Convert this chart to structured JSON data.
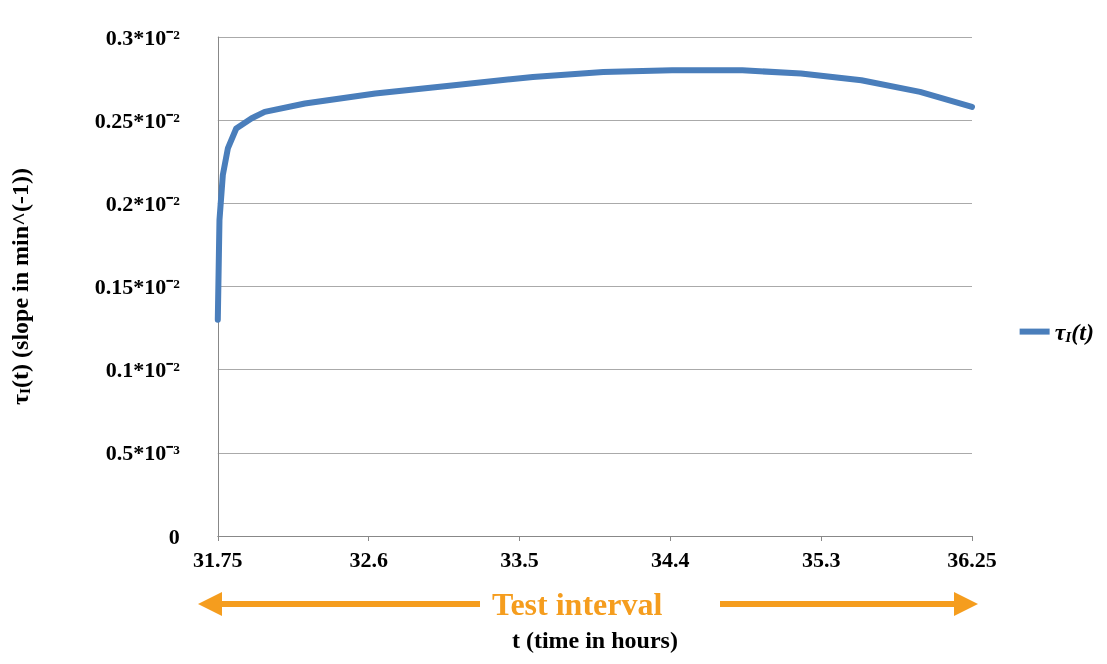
{
  "chart_data": {
    "type": "line",
    "ylabel": "τ$_{I}$(t) (slope in min^(-1))",
    "xlabel": "t (time in hours)",
    "annotations": [
      "Test interval"
    ],
    "series": [
      {
        "name": "τ$_{I}$(t)",
        "color": "#4a7ebb",
        "x": [
          31.75,
          31.76,
          31.78,
          31.81,
          31.86,
          31.95,
          32.03,
          32.27,
          32.69,
          33.16,
          33.63,
          34.05,
          34.46,
          34.88,
          35.23,
          35.59,
          35.94,
          36.25
        ],
        "values": [
          0.0013,
          0.0019,
          0.00217,
          0.00233,
          0.00245,
          0.00251,
          0.00255,
          0.0026,
          0.00266,
          0.00271,
          0.00276,
          0.00279,
          0.0028,
          0.0028,
          0.00278,
          0.00274,
          0.00267,
          0.00258
        ]
      }
    ],
    "xlim": [
      31.75,
      36.25
    ],
    "xticks": [
      31.75,
      {
        "value": 32.65,
        "label": "32.6"
      },
      {
        "value": 33.55,
        "label": "33.5"
      },
      {
        "value": 34.45,
        "label": "34.4"
      },
      {
        "value": 35.35,
        "label": "35.3"
      },
      36.25
    ],
    "ylim": [
      0,
      0.003
    ],
    "yticks": [
      {
        "value": 0,
        "label": "0"
      },
      {
        "value": 0.0005,
        "label": "0.5*10⁻³"
      },
      {
        "value": 0.001,
        "label": "0.1*10⁻²"
      },
      {
        "value": 0.0015,
        "label": "0.15*10⁻²"
      },
      {
        "value": 0.002,
        "label": "0.2*10⁻²"
      },
      {
        "value": 0.0025,
        "label": "0.25*10⁻²"
      },
      {
        "value": 0.003,
        "label": "0.3*10⁻²"
      }
    ],
    "grid": "y",
    "legend": "right",
    "marker": "none",
    "line_style": "solid"
  }
}
